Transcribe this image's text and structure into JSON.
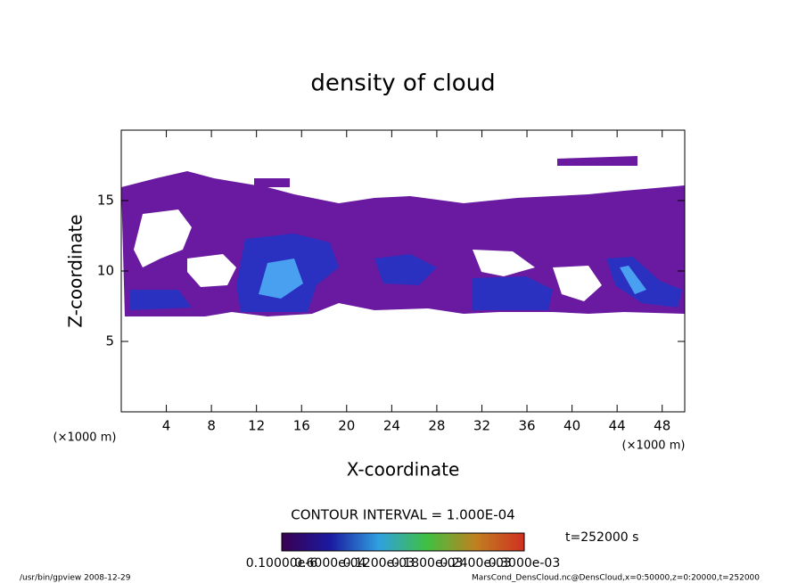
{
  "chart_data": {
    "type": "contour",
    "title": "density of cloud",
    "x_label": "X-coordinate",
    "y_label": "Z-coordinate",
    "x_unit_left": "(×1000 m)",
    "x_unit_right": "(×1000 m)",
    "xlim": [
      0,
      50
    ],
    "xticks": [
      4,
      8,
      12,
      16,
      20,
      24,
      28,
      32,
      36,
      40,
      44,
      48
    ],
    "ylim": [
      0,
      20
    ],
    "yticks": [
      5,
      10,
      15
    ],
    "contour_interval": "CONTOUR INTERVAL = 1.000E-04",
    "time_label": "t=252000 s",
    "colorbar_ticks": [
      "0.10000e-6",
      "0.6000e-04",
      "0.1200e-03",
      "0.1800e-03",
      "0.2400e-03",
      "0.3000e-03"
    ],
    "footer_left": "/usr/bin/gpview  2008-12-29",
    "footer_right": "MarsCond_DensCloud.nc@DensCloud,x=0:50000,z=0:20000,t=252000"
  }
}
